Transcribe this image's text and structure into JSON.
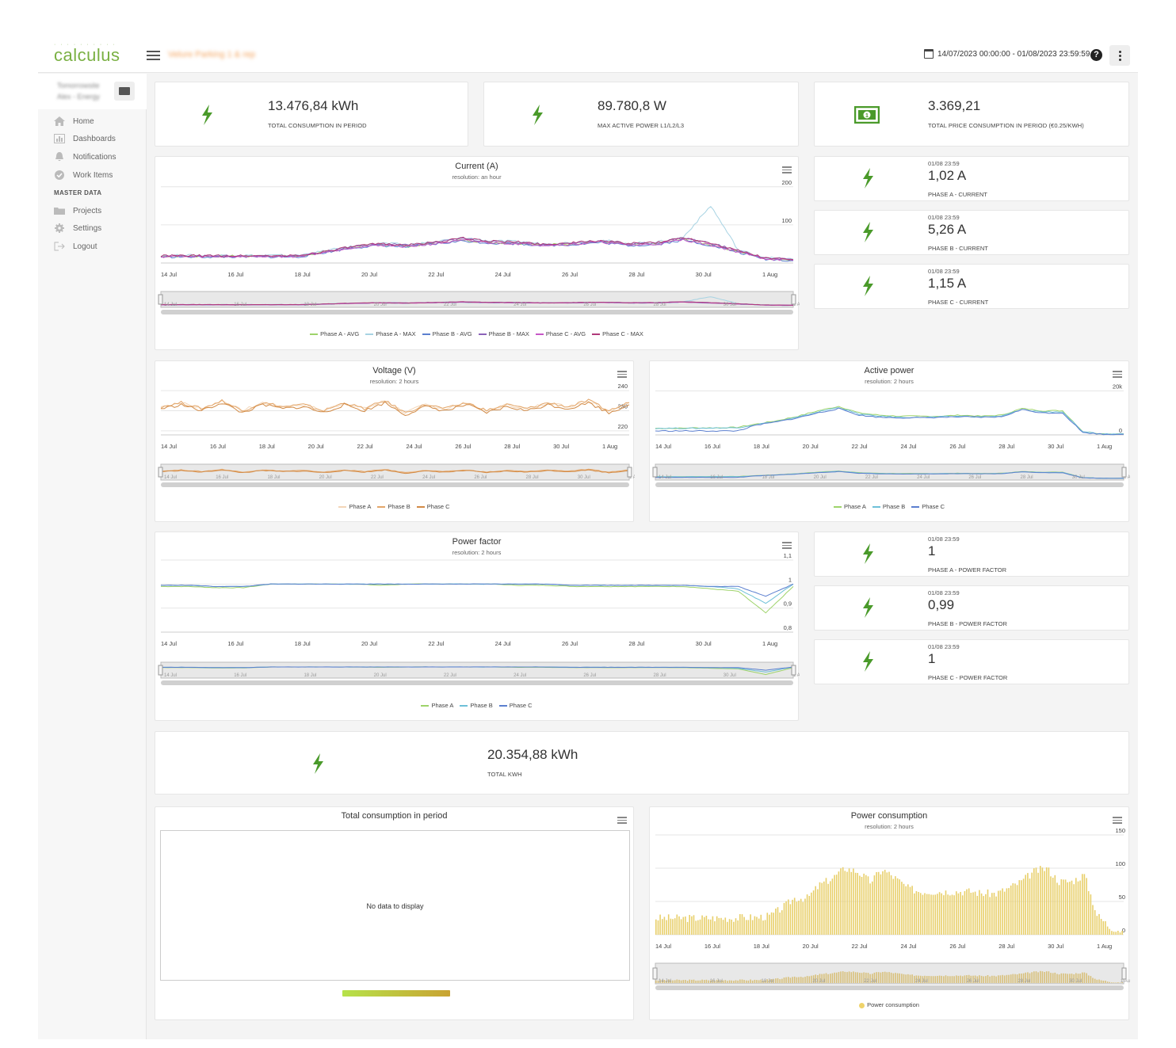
{
  "app": {
    "logo": "calculus",
    "project_name": "Velure Parking 1 & rep",
    "date_range": "14/07/2023 00:00:00 - 01/08/2023 23:59:59",
    "help": "?"
  },
  "sidebar": {
    "header_line1": "Tomorrowsite",
    "header_line2": "Alex - Energy",
    "items": [
      {
        "label": "Home",
        "icon": "home-icon"
      },
      {
        "label": "Dashboards",
        "icon": "bar-chart-icon"
      },
      {
        "label": "Notifications",
        "icon": "bell-icon"
      },
      {
        "label": "Work Items",
        "icon": "check-circle-icon"
      }
    ],
    "section": "MASTER DATA",
    "master_items": [
      {
        "label": "Projects",
        "icon": "folder-icon"
      },
      {
        "label": "Settings",
        "icon": "gear-icon"
      },
      {
        "label": "Logout",
        "icon": "logout-icon"
      }
    ]
  },
  "kpis": [
    {
      "value": "13.476,84 kWh",
      "label": "TOTAL CONSUMPTION IN PERIOD",
      "icon": "bolt-icon"
    },
    {
      "value": "89.780,8 W",
      "label": "MAX ACTIVE POWER L1/L2/L3",
      "icon": "bolt-icon"
    },
    {
      "value": "3.369,21",
      "label": "TOTAL PRICE CONSUMPTION IN PERIOD (€0.25/KWH)",
      "icon": "money-icon"
    }
  ],
  "phase_current": [
    {
      "date": "01/08 23:59",
      "value": "1,02 A",
      "label": "PHASE A - CURRENT"
    },
    {
      "date": "01/08 23:59",
      "value": "5,26 A",
      "label": "PHASE B - CURRENT"
    },
    {
      "date": "01/08 23:59",
      "value": "1,15 A",
      "label": "PHASE C - CURRENT"
    }
  ],
  "phase_pf": [
    {
      "date": "01/08 23:59",
      "value": "1",
      "label": "PHASE A - POWER FACTOR"
    },
    {
      "date": "01/08 23:59",
      "value": "0,99",
      "label": "PHASE B - POWER FACTOR"
    },
    {
      "date": "01/08 23:59",
      "value": "1",
      "label": "PHASE C - POWER FACTOR"
    }
  ],
  "total_kwh": {
    "value": "20.354,88 kWh",
    "label": "TOTAL KWH"
  },
  "dates": [
    "14 Jul",
    "16 Jul",
    "18 Jul",
    "20 Jul",
    "22 Jul",
    "24 Jul",
    "26 Jul",
    "28 Jul",
    "30 Jul",
    "1 Aug"
  ],
  "colors": {
    "green": "#4a9a2a",
    "phaseA": "#9ed36a",
    "phaseB": "#6ec0d8",
    "phaseC": "#5b7fcf",
    "phaseA_max": "#a7d3e3",
    "phaseB_max": "#8b63b8",
    "phaseC_avg": "#c657c6",
    "phaseC_max": "#b03a7a",
    "volt": "#d28a45",
    "bar": "#e8cf6a"
  },
  "chart_data": [
    {
      "type": "line",
      "title": "Current (A)",
      "subtitle": "resolution: an hour",
      "x_ticks": [
        "14 Jul",
        "16 Jul",
        "18 Jul",
        "20 Jul",
        "22 Jul",
        "24 Jul",
        "26 Jul",
        "28 Jul",
        "30 Jul",
        "1 Aug"
      ],
      "y_ticks": [
        100,
        200
      ],
      "ylim": [
        0,
        210
      ],
      "series": [
        {
          "name": "Phase A - AVG",
          "values": [
            18,
            18,
            18,
            18,
            18,
            18,
            30,
            42,
            48,
            44,
            52,
            60,
            54,
            52,
            48,
            50,
            56,
            48,
            50,
            62,
            48,
            30,
            12,
            8
          ]
        },
        {
          "name": "Phase A - MAX",
          "values": [
            20,
            20,
            20,
            20,
            20,
            20,
            32,
            44,
            52,
            48,
            56,
            66,
            58,
            56,
            50,
            54,
            60,
            52,
            54,
            68,
            150,
            34,
            14,
            10
          ]
        },
        {
          "name": "Phase B - AVG",
          "values": [
            16,
            16,
            16,
            16,
            16,
            16,
            28,
            40,
            46,
            42,
            50,
            58,
            52,
            50,
            46,
            48,
            54,
            46,
            48,
            60,
            46,
            28,
            10,
            6
          ]
        },
        {
          "name": "Phase B - MAX",
          "values": [
            18,
            18,
            18,
            18,
            18,
            18,
            30,
            42,
            50,
            46,
            54,
            64,
            56,
            54,
            48,
            52,
            58,
            50,
            52,
            66,
            52,
            32,
            12,
            8
          ]
        },
        {
          "name": "Phase C - AVG",
          "values": [
            17,
            17,
            17,
            17,
            17,
            17,
            29,
            41,
            47,
            43,
            51,
            59,
            53,
            51,
            47,
            49,
            55,
            47,
            49,
            61,
            47,
            29,
            11,
            7
          ]
        },
        {
          "name": "Phase C - MAX",
          "values": [
            19,
            19,
            19,
            19,
            19,
            19,
            31,
            43,
            51,
            47,
            55,
            65,
            57,
            55,
            49,
            53,
            59,
            51,
            53,
            67,
            53,
            33,
            13,
            9
          ]
        }
      ]
    },
    {
      "type": "line",
      "title": "Voltage (V)",
      "subtitle": "resolution: 2 hours",
      "x_ticks": [
        "14 Jul",
        "16 Jul",
        "18 Jul",
        "20 Jul",
        "22 Jul",
        "24 Jul",
        "26 Jul",
        "28 Jul",
        "30 Jul",
        "1 Aug"
      ],
      "y_ticks": [
        220,
        230,
        240
      ],
      "ylim": [
        218,
        242
      ],
      "series": [
        {
          "name": "Phase A",
          "values": [
            232,
            234,
            231,
            235,
            230,
            234,
            232,
            233,
            230,
            234,
            231,
            235,
            229,
            233,
            231,
            234,
            230,
            233,
            231,
            234,
            232,
            235,
            230,
            234
          ]
        },
        {
          "name": "Phase B",
          "values": [
            232,
            234,
            231,
            235,
            230,
            234,
            232,
            233,
            230,
            234,
            231,
            235,
            229,
            233,
            231,
            234,
            230,
            233,
            231,
            234,
            232,
            235,
            230,
            234
          ]
        },
        {
          "name": "Phase C",
          "values": [
            231,
            233,
            230,
            234,
            229,
            233,
            231,
            232,
            229,
            233,
            230,
            234,
            228,
            232,
            230,
            233,
            229,
            232,
            230,
            233,
            231,
            234,
            229,
            233
          ]
        }
      ]
    },
    {
      "type": "line",
      "title": "Active power",
      "subtitle": "resolution: 2 hours",
      "x_ticks": [
        "14 Jul",
        "16 Jul",
        "18 Jul",
        "20 Jul",
        "22 Jul",
        "24 Jul",
        "26 Jul",
        "28 Jul",
        "30 Jul",
        "1 Aug"
      ],
      "y_ticks": [
        "0",
        "20k"
      ],
      "ylim": [
        0,
        22000
      ],
      "series": [
        {
          "name": "Phase A",
          "values": [
            3000,
            3000,
            3200,
            3200,
            3400,
            5000,
            6500,
            8500,
            11000,
            13000,
            10000,
            9000,
            8500,
            8500,
            8500,
            9000,
            8500,
            9000,
            12000,
            11000,
            11000,
            1500,
            500,
            500
          ]
        },
        {
          "name": "Phase B",
          "values": [
            3000,
            3000,
            3000,
            3200,
            3200,
            4800,
            6200,
            8000,
            10500,
            12500,
            9500,
            8500,
            8000,
            8000,
            8200,
            8500,
            8200,
            8500,
            11500,
            10500,
            10500,
            1200,
            400,
            400
          ]
        },
        {
          "name": "Phase C",
          "values": [
            1800,
            1800,
            1800,
            1800,
            1800,
            4500,
            6000,
            7800,
            10000,
            12000,
            9000,
            8000,
            7800,
            7800,
            8000,
            8200,
            8000,
            8200,
            11500,
            10000,
            10000,
            1000,
            300,
            300
          ]
        }
      ]
    },
    {
      "type": "line",
      "title": "Power factor",
      "subtitle": "resolution: 2 hours",
      "x_ticks": [
        "14 Jul",
        "16 Jul",
        "18 Jul",
        "20 Jul",
        "22 Jul",
        "24 Jul",
        "26 Jul",
        "28 Jul",
        "30 Jul",
        "1 Aug"
      ],
      "y_ticks": [
        "0,8",
        "0,9",
        "1",
        "1,1"
      ],
      "ylim": [
        0.8,
        1.1
      ],
      "series": [
        {
          "name": "Phase A",
          "values": [
            0.99,
            0.99,
            0.985,
            0.985,
            1.0,
            1.0,
            1.0,
            1.0,
            0.995,
            1.0,
            1.0,
            1.0,
            1.0,
            0.995,
            0.995,
            0.99,
            0.99,
            0.99,
            0.99,
            0.99,
            0.98,
            0.97,
            0.88,
            0.99
          ]
        },
        {
          "name": "Phase B",
          "values": [
            0.995,
            0.995,
            0.99,
            0.99,
            1.0,
            1.0,
            1.0,
            1.0,
            1.0,
            1.0,
            1.0,
            1.0,
            1.0,
            1.0,
            1.0,
            0.995,
            0.995,
            0.995,
            0.995,
            0.995,
            0.99,
            0.98,
            0.92,
            1.0
          ]
        },
        {
          "name": "Phase C",
          "values": [
            0.995,
            0.995,
            0.99,
            0.99,
            1.0,
            1.0,
            1.0,
            1.0,
            1.0,
            1.0,
            1.0,
            1.0,
            1.0,
            1.0,
            1.0,
            0.995,
            0.995,
            0.995,
            0.995,
            0.995,
            0.99,
            0.99,
            0.95,
            1.0
          ]
        }
      ]
    },
    {
      "type": "table",
      "title": "Total consumption in period",
      "message": "No data to display"
    },
    {
      "type": "bar",
      "title": "Power consumption",
      "subtitle": "resolution: 2 hours",
      "x_ticks": [
        "14 Jul",
        "16 Jul",
        "18 Jul",
        "20 Jul",
        "22 Jul",
        "24 Jul",
        "26 Jul",
        "28 Jul",
        "30 Jul",
        "1 Aug"
      ],
      "y_ticks": [
        0,
        50,
        100,
        150
      ],
      "ylim": [
        0,
        150
      ],
      "series": [
        {
          "name": "Power consumption",
          "values": [
            25,
            25,
            25,
            25,
            25,
            25,
            25,
            26,
            26,
            28,
            40,
            55,
            55,
            75,
            85,
            100,
            95,
            80,
            98,
            85,
            70,
            65,
            65,
            65,
            65,
            65,
            62,
            62,
            70,
            80,
            95,
            100,
            80,
            80,
            90,
            30,
            12,
            6
          ]
        }
      ]
    }
  ]
}
